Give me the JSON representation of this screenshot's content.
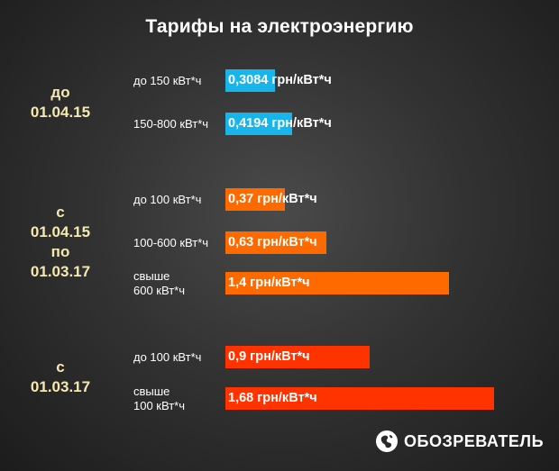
{
  "chart_data": {
    "type": "bar",
    "orientation": "horizontal",
    "title": "Тарифы на электроэнергию",
    "unit": "грн/кВт*ч",
    "xlim": [
      0,
      1.68
    ],
    "groups": [
      {
        "period_lines": [
          "до",
          "01.04.15"
        ],
        "color": "#18b4ec",
        "bars": [
          {
            "tier": [
              "до 150 кВт*ч"
            ],
            "value": 0.3084,
            "label": "0,3084 грн/кВт*ч"
          },
          {
            "tier": [
              "150-800 кВт*ч"
            ],
            "value": 0.4194,
            "label": "0,4194 грн/кВт*ч"
          }
        ]
      },
      {
        "period_lines": [
          "с",
          "01.04.15",
          "по",
          "01.03.17"
        ],
        "color": "#ff6a00",
        "bars": [
          {
            "tier": [
              "до 100 кВт*ч"
            ],
            "value": 0.37,
            "label": "0,37 грн/кВт*ч"
          },
          {
            "tier": [
              "100-600 кВт*ч"
            ],
            "value": 0.63,
            "label": "0,63 грн/кВт*ч"
          },
          {
            "tier": [
              "свыше",
              "600 кВт*ч"
            ],
            "value": 1.4,
            "label": "1,4 грн/кВт*ч"
          }
        ]
      },
      {
        "period_lines": [
          "с",
          "01.03.17"
        ],
        "color": "#ff3300",
        "bars": [
          {
            "tier": [
              "до 100 кВт*ч"
            ],
            "value": 0.9,
            "label": "0,9 грн/кВт*ч"
          },
          {
            "tier": [
              "свыше",
              "100 кВт*ч"
            ],
            "value": 1.68,
            "label": "1,68 грн/кВт*ч"
          }
        ]
      }
    ]
  },
  "logo": {
    "text": "ОБОЗРЕВАТЕЛЬ",
    "icon": "globe-icon"
  }
}
